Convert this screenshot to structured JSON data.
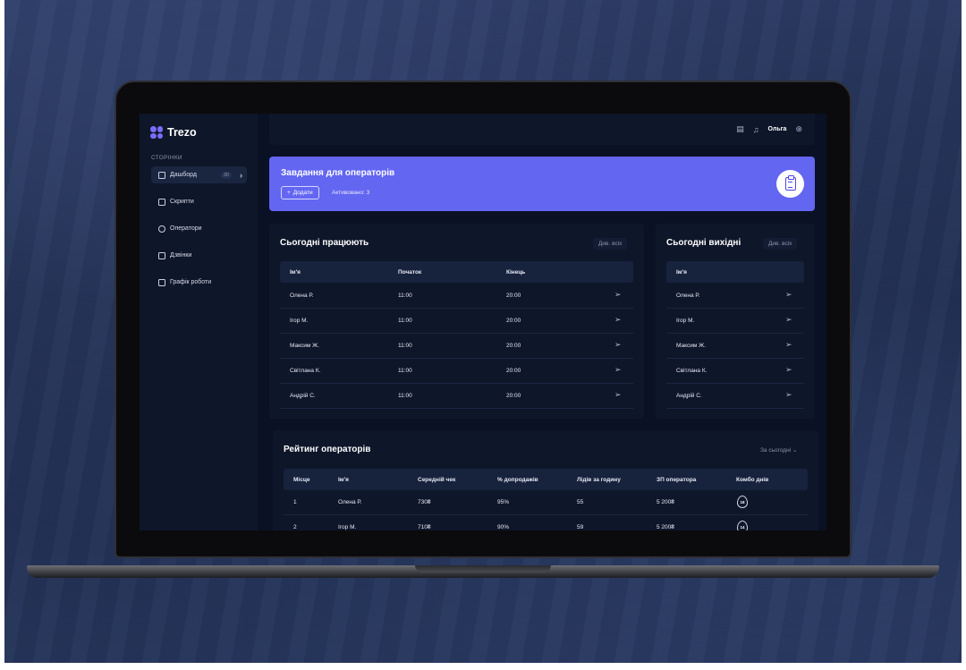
{
  "sidebar": {
    "logo": "Trezo",
    "section": "СТОРІНКИ",
    "items": [
      {
        "label": "Дашборд",
        "badge": "30",
        "active": true
      },
      {
        "label": "Скрипти"
      },
      {
        "label": "Оператори"
      },
      {
        "label": "Дзвінки"
      },
      {
        "label": "Графік роботи"
      }
    ]
  },
  "topbar": {
    "user": "Ольга"
  },
  "banner": {
    "title": "Завдання для операторів",
    "add_label": "Додати",
    "active_text": "Активовано: 3"
  },
  "working_today": {
    "title": "Сьогодні працюють",
    "see_all": "Див. всіх",
    "columns": [
      "Ім'я",
      "Початок",
      "Кінець"
    ],
    "rows": [
      {
        "name": "Олена Р.",
        "start": "11:00",
        "end": "20:00"
      },
      {
        "name": "Ігор М.",
        "start": "11:00",
        "end": "20:00"
      },
      {
        "name": "Максим Ж.",
        "start": "11:00",
        "end": "20:00"
      },
      {
        "name": "Світлана К.",
        "start": "11:00",
        "end": "20:00"
      },
      {
        "name": "Андрій С.",
        "start": "11:00",
        "end": "20:00"
      }
    ]
  },
  "off_today": {
    "title": "Сьогодні вихідні",
    "see_all": "Див. всіх",
    "columns": [
      "Ім'я"
    ],
    "rows": [
      {
        "name": "Олена Р."
      },
      {
        "name": "Ігор М."
      },
      {
        "name": "Максим Ж."
      },
      {
        "name": "Світлана К."
      },
      {
        "name": "Андрій С."
      }
    ]
  },
  "rating": {
    "title": "Рейтинг операторів",
    "filter": "За сьогодні",
    "columns": [
      "Місце",
      "Ім'я",
      "Середній чек",
      "% допродажів",
      "Лідів за годину",
      "ЗП оператора",
      "Комбо днів"
    ],
    "rows": [
      {
        "place": "1",
        "name": "Олена Р.",
        "avg_check": "730₴",
        "upsell": "95%",
        "leads": "55",
        "salary": "5 200₴",
        "combo": "18"
      },
      {
        "place": "2",
        "name": "Ігор М.",
        "avg_check": "710₴",
        "upsell": "90%",
        "leads": "59",
        "salary": "5 200₴",
        "combo": "14"
      }
    ]
  }
}
